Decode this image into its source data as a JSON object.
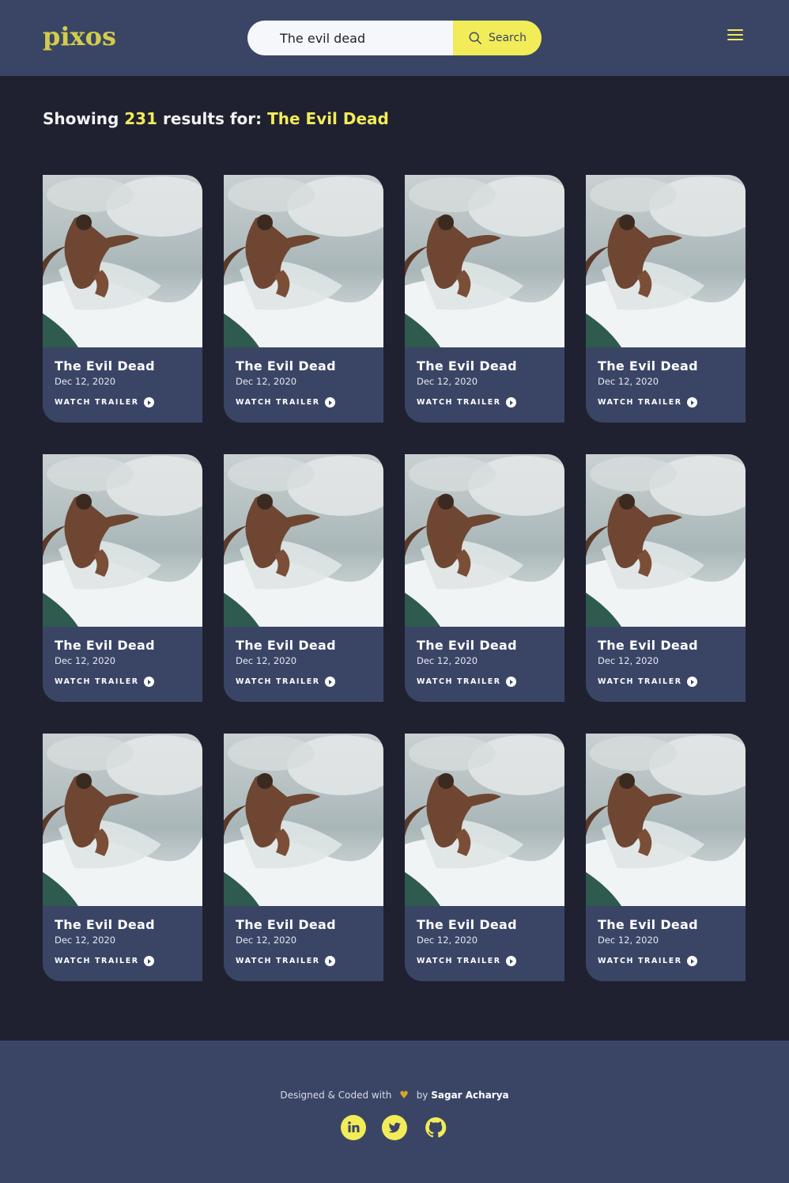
{
  "header": {
    "logo": "pixos",
    "search": {
      "value": "The evil dead",
      "button_label": "Search"
    }
  },
  "results": {
    "prefix": "Showing",
    "count": "231",
    "middle": "results for:",
    "query": "The Evil Dead"
  },
  "movies": [
    {
      "title": "The Evil Dead",
      "date": "Dec 12, 2020",
      "cta": "WATCH TRAILER"
    },
    {
      "title": "The Evil Dead",
      "date": "Dec 12, 2020",
      "cta": "WATCH TRAILER"
    },
    {
      "title": "The Evil Dead",
      "date": "Dec 12, 2020",
      "cta": "WATCH TRAILER"
    },
    {
      "title": "The Evil Dead",
      "date": "Dec 12, 2020",
      "cta": "WATCH TRAILER"
    },
    {
      "title": "The Evil Dead",
      "date": "Dec 12, 2020",
      "cta": "WATCH TRAILER"
    },
    {
      "title": "The Evil Dead",
      "date": "Dec 12, 2020",
      "cta": "WATCH TRAILER"
    },
    {
      "title": "The Evil Dead",
      "date": "Dec 12, 2020",
      "cta": "WATCH TRAILER"
    },
    {
      "title": "The Evil Dead",
      "date": "Dec 12, 2020",
      "cta": "WATCH TRAILER"
    },
    {
      "title": "The Evil Dead",
      "date": "Dec 12, 2020",
      "cta": "WATCH TRAILER"
    },
    {
      "title": "The Evil Dead",
      "date": "Dec 12, 2020",
      "cta": "WATCH TRAILER"
    },
    {
      "title": "The Evil Dead",
      "date": "Dec 12, 2020",
      "cta": "WATCH TRAILER"
    },
    {
      "title": "The Evil Dead",
      "date": "Dec 12, 2020",
      "cta": "WATCH TRAILER"
    }
  ],
  "footer": {
    "credit_prefix": "Designed & Coded with",
    "credit_by": "by",
    "author": "Sagar Acharya",
    "socials": [
      "linkedin-icon",
      "twitter-icon",
      "github-icon"
    ]
  },
  "colors": {
    "background": "#1f2130",
    "panel": "#3a4566",
    "accent": "#f2ec58",
    "logo": "#d2cc4a"
  }
}
